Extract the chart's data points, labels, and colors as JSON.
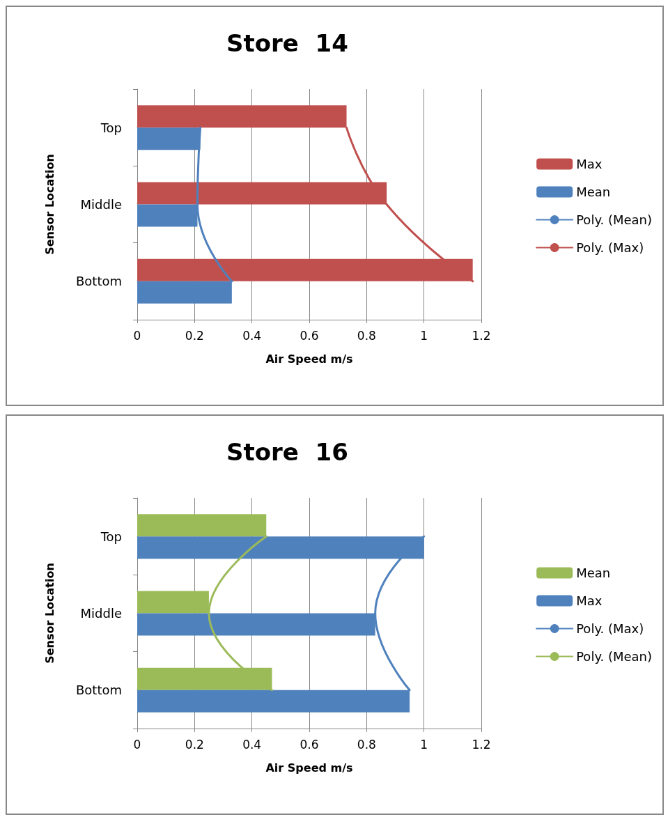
{
  "chart_data": [
    {
      "type": "bar",
      "orientation": "horizontal",
      "title": "Store  14",
      "xlabel": "Air Speed m/s",
      "ylabel": "Sensor Location",
      "categories": [
        "Top",
        "Middle",
        "Bottom"
      ],
      "xlim": [
        0,
        1.2
      ],
      "xticks": [
        0,
        0.2,
        0.4,
        0.6,
        0.8,
        1,
        1.2
      ],
      "grid": "x",
      "legend": "right",
      "series": [
        {
          "name": "Max",
          "color": "#c0504d",
          "values": [
            0.73,
            0.87,
            1.17
          ]
        },
        {
          "name": "Mean",
          "color": "#4f81bd",
          "values": [
            0.22,
            0.21,
            0.33
          ]
        },
        {
          "name": "Poly. (Mean)",
          "type": "line",
          "color": "#4f81bd",
          "values": [
            0.22,
            0.21,
            0.33
          ]
        },
        {
          "name": "Poly. (Max)",
          "type": "line",
          "color": "#c0504d",
          "values": [
            0.73,
            0.87,
            1.17
          ]
        }
      ]
    },
    {
      "type": "bar",
      "orientation": "horizontal",
      "title": "Store  16",
      "xlabel": "Air Speed m/s",
      "ylabel": "Sensor Location",
      "categories": [
        "Top",
        "Middle",
        "Bottom"
      ],
      "xlim": [
        0,
        1.2
      ],
      "xticks": [
        0,
        0.2,
        0.4,
        0.6,
        0.8,
        1,
        1.2
      ],
      "grid": "x",
      "legend": "right",
      "series": [
        {
          "name": "Mean",
          "color": "#9bbb59",
          "values": [
            0.45,
            0.25,
            0.47
          ]
        },
        {
          "name": "Max",
          "color": "#4f81bd",
          "values": [
            1,
            0.83,
            0.95
          ]
        },
        {
          "name": "Poly. (Max)",
          "type": "line",
          "color": "#4f81bd",
          "values": [
            1,
            0.83,
            0.95
          ]
        },
        {
          "name": "Poly. (Mean)",
          "type": "line",
          "color": "#9bbb59",
          "values": [
            0.45,
            0.25,
            0.47
          ]
        }
      ]
    }
  ]
}
